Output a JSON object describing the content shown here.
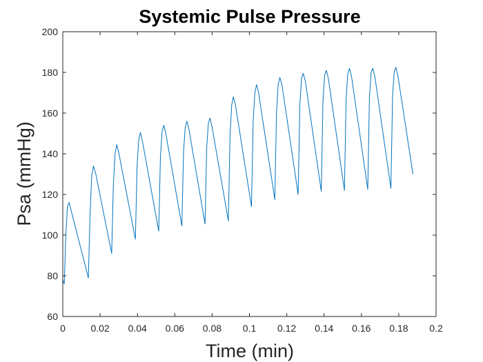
{
  "chart_data": {
    "type": "line",
    "title": "Systemic Pulse Pressure",
    "xlabel": "Time (min)",
    "ylabel": "Psa (mmHg)",
    "xlim": [
      0,
      0.2
    ],
    "ylim": [
      60,
      200
    ],
    "xticks": [
      0,
      0.02,
      0.04,
      0.06,
      0.08,
      0.1,
      0.12,
      0.14,
      0.16,
      0.18,
      0.2
    ],
    "xtick_labels": [
      "0",
      "0.02",
      "0.04",
      "0.06",
      "0.08",
      "0.1",
      "0.12",
      "0.14",
      "0.16",
      "0.18",
      "0.2"
    ],
    "yticks": [
      60,
      80,
      100,
      120,
      140,
      160,
      180,
      200
    ],
    "ytick_labels": [
      "60",
      "80",
      "100",
      "120",
      "140",
      "160",
      "180",
      "200"
    ],
    "grid": false,
    "box": true,
    "series": [
      {
        "color": "#0072BD",
        "x": [
          0,
          0.0008,
          0.0016,
          0.0025,
          0.0034,
          0.0045,
          0.0137,
          0.0146,
          0.0155,
          0.0164,
          0.0177,
          0.0262,
          0.0271,
          0.028,
          0.0289,
          0.0301,
          0.0389,
          0.0398,
          0.0407,
          0.0416,
          0.0427,
          0.0514,
          0.0523,
          0.0532,
          0.0541,
          0.0552,
          0.0638,
          0.0647,
          0.0656,
          0.0665,
          0.0676,
          0.0762,
          0.0771,
          0.078,
          0.0789,
          0.08,
          0.0887,
          0.0896,
          0.0905,
          0.0914,
          0.0925,
          0.1011,
          0.102,
          0.1029,
          0.1038,
          0.1049,
          0.1136,
          0.1145,
          0.1154,
          0.1163,
          0.1174,
          0.1261,
          0.127,
          0.1279,
          0.1288,
          0.1299,
          0.1385,
          0.1394,
          0.1403,
          0.1412,
          0.1423,
          0.1509,
          0.1518,
          0.1527,
          0.1536,
          0.1547,
          0.1634,
          0.1643,
          0.1652,
          0.1661,
          0.1672,
          0.1758,
          0.1767,
          0.1776,
          0.1785,
          0.1796,
          0.1876
        ],
        "y": [
          78,
          76,
          100,
          114,
          116,
          112,
          79,
          110,
          129,
          134,
          130,
          91,
          125,
          140,
          144.5,
          140,
          98,
          134,
          147,
          150.5,
          146,
          102,
          138,
          151,
          154,
          150,
          104.5,
          141,
          153,
          156,
          152,
          105.5,
          143,
          155,
          157.5,
          153,
          107,
          149,
          164,
          168,
          164,
          114,
          156,
          170,
          174,
          170,
          117.5,
          160,
          174,
          177.5,
          174,
          120,
          164,
          177,
          179.5,
          176,
          121.5,
          166,
          178.5,
          181,
          177,
          122,
          167,
          179.5,
          182,
          178,
          122.5,
          168,
          180,
          182,
          178,
          123,
          169,
          180.5,
          182.5,
          178,
          130
        ]
      }
    ]
  }
}
